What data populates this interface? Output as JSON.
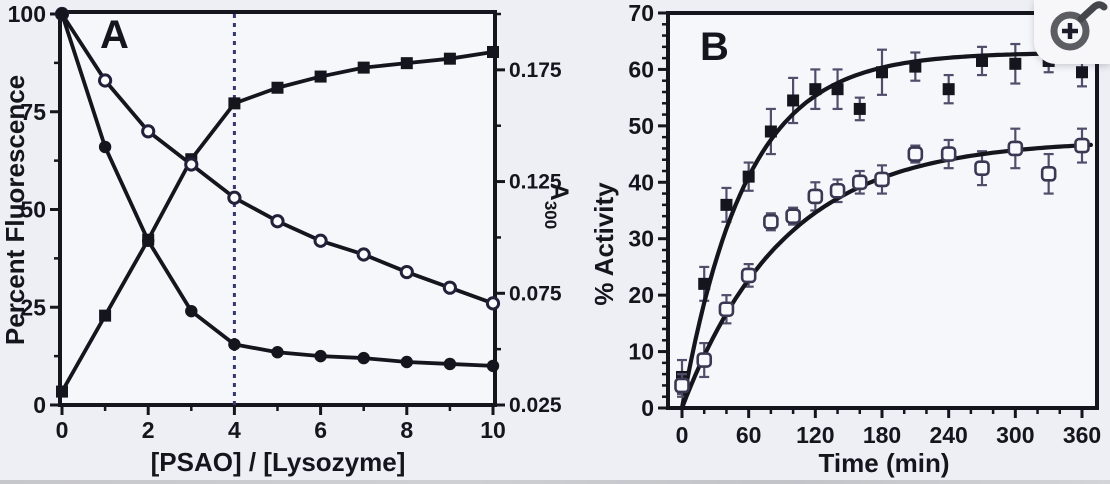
{
  "overlay": {
    "zoom_icon": "magnifier-plus-icon"
  },
  "chart_data": [
    {
      "panel_label": "A",
      "type": "line",
      "x_label": "[PSAO] / [Lysozyme]",
      "y_left_label": "Percent Fluorescence",
      "y_right_label": {
        "main": "A",
        "sub": "300"
      },
      "x_range": [
        0,
        10
      ],
      "y_left_range": [
        0,
        100
      ],
      "y_right_range": [
        0.025,
        0.2
      ],
      "x_ticks_major": [
        0,
        2,
        4,
        6,
        8,
        10
      ],
      "x_ticks_minor": [
        1,
        3,
        5,
        7,
        9
      ],
      "y_left_ticks_major": [
        0,
        25,
        50,
        75,
        100
      ],
      "y_left_ticks_minor": [
        12.5,
        37.5,
        62.5,
        87.5
      ],
      "y_right_ticks_major": [
        "0.025",
        "0.075",
        "0.125",
        "0.175"
      ],
      "y_right_ticks_minor": [
        0.05,
        0.1,
        0.15,
        0.2
      ],
      "dashed_vline_x": 4,
      "dashed_vline_color": "#34386e",
      "grid": "off",
      "series": [
        {
          "name": "A300 absorbance (filled squares, right axis)",
          "marker": "filled-square",
          "axis": "right",
          "x": [
            0,
            1,
            2,
            3,
            4,
            5,
            6,
            7,
            8,
            9,
            10
          ],
          "y": [
            0.031,
            0.065,
            0.099,
            0.135,
            0.16,
            0.167,
            0.172,
            0.176,
            0.178,
            0.18,
            0.183
          ]
        },
        {
          "name": "percent fluorescence (open circles, left axis)",
          "marker": "open-circle",
          "axis": "left",
          "x": [
            0,
            1,
            2,
            3,
            4,
            5,
            6,
            7,
            8,
            9,
            10
          ],
          "y": [
            100,
            83,
            70,
            61.5,
            53,
            47,
            42,
            38.5,
            34,
            30,
            26
          ]
        },
        {
          "name": "percent fluorescence (filled circles, left axis)",
          "marker": "filled-circle",
          "axis": "left",
          "x": [
            0,
            1,
            2,
            3,
            4,
            5,
            6,
            7,
            8,
            9,
            10
          ],
          "y": [
            100,
            66,
            42,
            24,
            15.5,
            13.5,
            12.5,
            12,
            11,
            10.5,
            10
          ]
        }
      ]
    },
    {
      "panel_label": "B",
      "type": "scatter",
      "x_label": "Time (min)",
      "y_label": "% Activity",
      "x_range": [
        0,
        360
      ],
      "y_range": [
        0,
        70
      ],
      "x_ticks_major": [
        0,
        60,
        120,
        180,
        240,
        300,
        360
      ],
      "x_minor_step": 20,
      "y_ticks_major": [
        0,
        10,
        20,
        30,
        40,
        50,
        60,
        70
      ],
      "y_minor_step": 2,
      "grid": "off",
      "series": [
        {
          "name": "filled squares with error bars",
          "marker": "filled-square",
          "x": [
            0,
            20,
            40,
            60,
            80,
            100,
            120,
            140,
            160,
            180,
            210,
            240,
            270,
            300,
            330,
            360
          ],
          "y": [
            5.5,
            22,
            36,
            41,
            49,
            54.5,
            56.5,
            56.5,
            53,
            59.5,
            60.5,
            56.5,
            61.5,
            61,
            61.5,
            59.5
          ],
          "yerr": [
            3,
            3,
            3,
            2.5,
            4,
            4,
            3.5,
            3.5,
            2,
            4,
            2.5,
            2.5,
            2.5,
            3.5,
            2,
            2.5
          ],
          "fit": {
            "type": "exponential-saturation",
            "plateau": 63,
            "tau_min": 57
          }
        },
        {
          "name": "open squares with error bars",
          "marker": "open-square",
          "x": [
            0,
            20,
            40,
            60,
            80,
            100,
            120,
            140,
            160,
            180,
            210,
            240,
            270,
            300,
            330,
            360
          ],
          "y": [
            4,
            8.5,
            17.5,
            23.5,
            33,
            34,
            37.5,
            38.5,
            40,
            40.5,
            45,
            45,
            42.5,
            46,
            41.5,
            46.5
          ],
          "yerr": [
            2,
            3,
            2.5,
            2,
            1.5,
            1.5,
            2.5,
            2,
            2,
            2.5,
            1.5,
            2.5,
            3,
            3.5,
            3.5,
            3
          ],
          "fit": {
            "type": "exponential-saturation",
            "plateau": 47.5,
            "tau_min": 92
          }
        }
      ]
    }
  ]
}
